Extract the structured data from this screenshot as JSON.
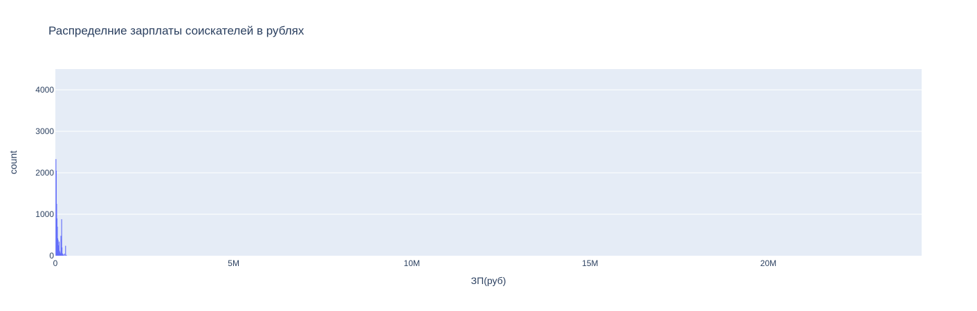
{
  "chart_data": {
    "type": "bar",
    "subtype": "histogram",
    "title": "Распределние зарплаты соискателей в рублях",
    "xlabel": "ЗП(руб)",
    "ylabel": "count",
    "xlim": [
      0,
      24300000
    ],
    "ylim": [
      0,
      4500
    ],
    "x_ticks": [
      {
        "value": 0,
        "label": "0"
      },
      {
        "value": 5000000,
        "label": "5M"
      },
      {
        "value": 10000000,
        "label": "10M"
      },
      {
        "value": 15000000,
        "label": "15M"
      },
      {
        "value": 20000000,
        "label": "20M"
      }
    ],
    "y_ticks": [
      {
        "value": 0,
        "label": "0"
      },
      {
        "value": 1000,
        "label": "1000"
      },
      {
        "value": 2000,
        "label": "2000"
      },
      {
        "value": 3000,
        "label": "3000"
      },
      {
        "value": 4000,
        "label": "4000"
      }
    ],
    "bin_width": 10000,
    "bins": [
      {
        "x": 10000,
        "count": 2330
      },
      {
        "x": 20000,
        "count": 2050
      },
      {
        "x": 30000,
        "count": 1250
      },
      {
        "x": 40000,
        "count": 900
      },
      {
        "x": 50000,
        "count": 700
      },
      {
        "x": 60000,
        "count": 420
      },
      {
        "x": 70000,
        "count": 380
      },
      {
        "x": 80000,
        "count": 250
      },
      {
        "x": 90000,
        "count": 180
      },
      {
        "x": 100000,
        "count": 340
      },
      {
        "x": 110000,
        "count": 120
      },
      {
        "x": 120000,
        "count": 90
      },
      {
        "x": 130000,
        "count": 60
      },
      {
        "x": 140000,
        "count": 50
      },
      {
        "x": 150000,
        "count": 480
      },
      {
        "x": 160000,
        "count": 400
      },
      {
        "x": 170000,
        "count": 880
      },
      {
        "x": 180000,
        "count": 200
      },
      {
        "x": 190000,
        "count": 60
      },
      {
        "x": 200000,
        "count": 40
      },
      {
        "x": 220000,
        "count": 30
      },
      {
        "x": 250000,
        "count": 50
      },
      {
        "x": 280000,
        "count": 240
      },
      {
        "x": 300000,
        "count": 20
      }
    ],
    "colors": {
      "bar": "#636efa",
      "plot_bg": "#e5ecf6",
      "grid": "#ffffff",
      "text": "#2a3f5f"
    },
    "grid": true,
    "legend": "none"
  }
}
